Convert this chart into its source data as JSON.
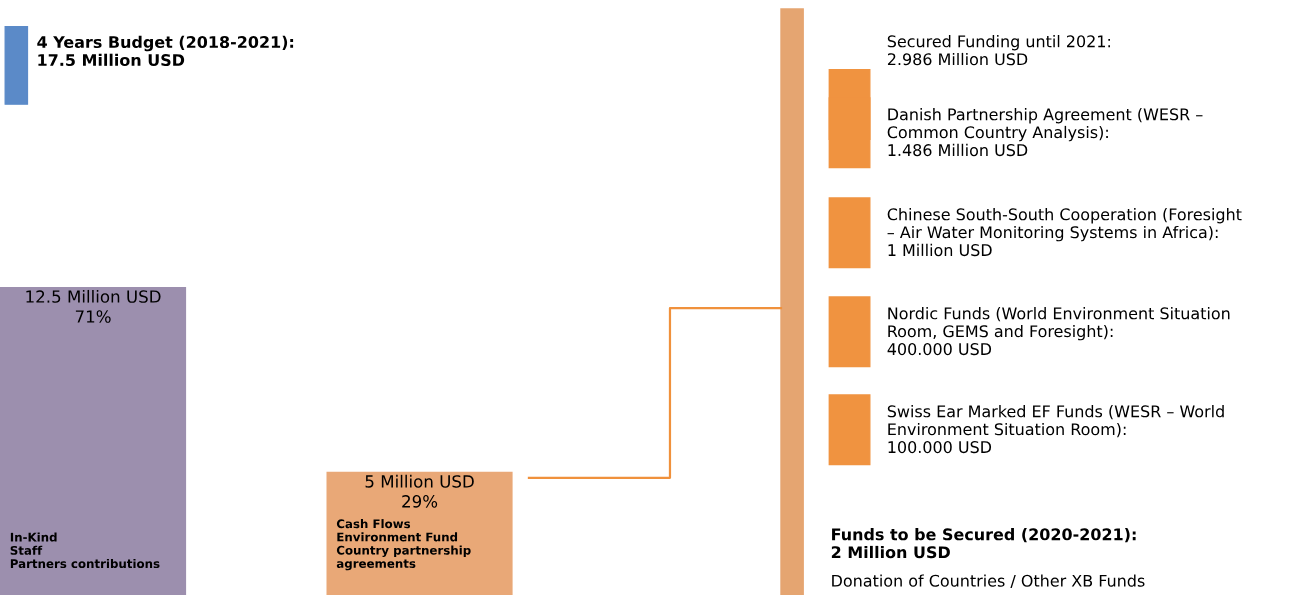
{
  "chart_data": {
    "type": "bar",
    "title": "4 Years Budget (2018-2021):\n17.5 Million USD",
    "categories": [
      "In-Kind\nStaff\nPartners contributions",
      "Cash Flows\nEnvironment Fund\nCountry partnership\nagreements"
    ],
    "values": [
      12.5,
      5
    ],
    "colors": [
      "#9c8fae",
      "#e9a877"
    ],
    "value_labels": [
      "12.5 Million USD\n71%",
      "5 Million USD\n29%"
    ],
    "annotations": [
      "Secured Funding until 2021:\n2.986 Million USD",
      "Danish Partnership Agreement (WESR –\nCommon Country Analysis):\n1.486 Million USD",
      "Chinese South-South Cooperation (Foresight\n– Air Water Monitoring Systems in Africa):\n1 Million USD",
      "Nordic Funds (World Environment Situation\nRoom, GEMS and Foresight):\n400.000 USD",
      "Swiss Ear Marked EF Funds (WESR – World\nEnvironment Situation Room):\n100.000 USD",
      "Funds to be Secured (2020-2021):\n2 Million USD\nDonation of Countries / Other XB Funds"
    ]
  }
}
